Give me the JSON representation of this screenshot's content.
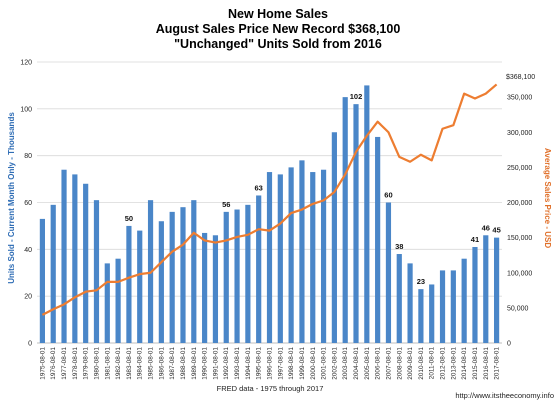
{
  "chart_data": {
    "type": "bar",
    "title_lines": [
      "New Home Sales",
      "August Sales Price New Record $368,100",
      "\"Unchanged\" Units Sold from 2016"
    ],
    "ylabel_left": "Units Sold - Current Month Only - Thousands",
    "ylabel_right": "Average Sales Price - USD",
    "xlabel": "FRED data - 1975 through 2017",
    "source": "http://www.itstheeconomy.info",
    "price_annotation": "$368,100",
    "ylim_left": [
      0,
      120
    ],
    "yticks_left": [
      0,
      20,
      40,
      60,
      80,
      100,
      120
    ],
    "ylim_right": [
      0,
      400000
    ],
    "yticks_right": [
      "0",
      "50,000",
      "100,000",
      "150,000",
      "200,000",
      "250,000",
      "300,000",
      "350,000"
    ],
    "yticks_right_values": [
      0,
      50000,
      100000,
      150000,
      200000,
      250000,
      300000,
      350000
    ],
    "categories": [
      "1975-08-01",
      "1976-08-01",
      "1977-08-01",
      "1978-08-01",
      "1979-08-01",
      "1980-08-01",
      "1981-08-01",
      "1982-08-01",
      "1983-08-01",
      "1984-08-01",
      "1985-08-01",
      "1986-08-01",
      "1987-08-01",
      "1988-08-01",
      "1989-08-01",
      "1990-08-01",
      "1991-08-01",
      "1992-08-01",
      "1993-08-01",
      "1994-08-01",
      "1995-08-01",
      "1996-08-01",
      "1997-08-01",
      "1998-08-01",
      "1999-08-01",
      "2000-08-01",
      "2001-08-01",
      "2002-08-01",
      "2003-08-01",
      "2004-08-01",
      "2005-08-01",
      "2006-08-01",
      "2007-08-01",
      "2008-08-01",
      "2009-08-01",
      "2010-08-01",
      "2011-08-01",
      "2012-08-01",
      "2013-08-01",
      "2014-08-01",
      "2015-08-01",
      "2016-08-01",
      "2017-08-01"
    ],
    "series": [
      {
        "type": "bar",
        "axis": "left",
        "color": "#4a86c8",
        "values": [
          53,
          59,
          74,
          72,
          68,
          61,
          34,
          36,
          50,
          48,
          61,
          52,
          56,
          58,
          61,
          47,
          46,
          56,
          57,
          59,
          63,
          73,
          72,
          75,
          78,
          73,
          74,
          90,
          105,
          102,
          110,
          88,
          60,
          38,
          34,
          23,
          25,
          31,
          31,
          36,
          41,
          46,
          45
        ]
      },
      {
        "type": "line",
        "axis": "right",
        "color": "#ed7d31",
        "values": [
          40000,
          48000,
          55000,
          65000,
          73000,
          75000,
          87000,
          87000,
          93000,
          98000,
          100000,
          115000,
          130000,
          140000,
          157000,
          146000,
          143000,
          146000,
          151000,
          154000,
          162000,
          160000,
          170000,
          185000,
          190000,
          198000,
          203000,
          215000,
          240000,
          272000,
          295000,
          315000,
          300000,
          265000,
          258000,
          268000,
          260000,
          305000,
          310000,
          355000,
          348000,
          355000,
          368100
        ]
      }
    ],
    "data_labels": [
      {
        "index": 8,
        "text": "50"
      },
      {
        "index": 17,
        "text": "56"
      },
      {
        "index": 20,
        "text": "63"
      },
      {
        "index": 29,
        "text": "102"
      },
      {
        "index": 32,
        "text": "60"
      },
      {
        "index": 33,
        "text": "38"
      },
      {
        "index": 35,
        "text": "23"
      },
      {
        "index": 40,
        "text": "41"
      },
      {
        "index": 41,
        "text": "46"
      },
      {
        "index": 42,
        "text": "45"
      }
    ],
    "grid": true,
    "legend": "none"
  }
}
